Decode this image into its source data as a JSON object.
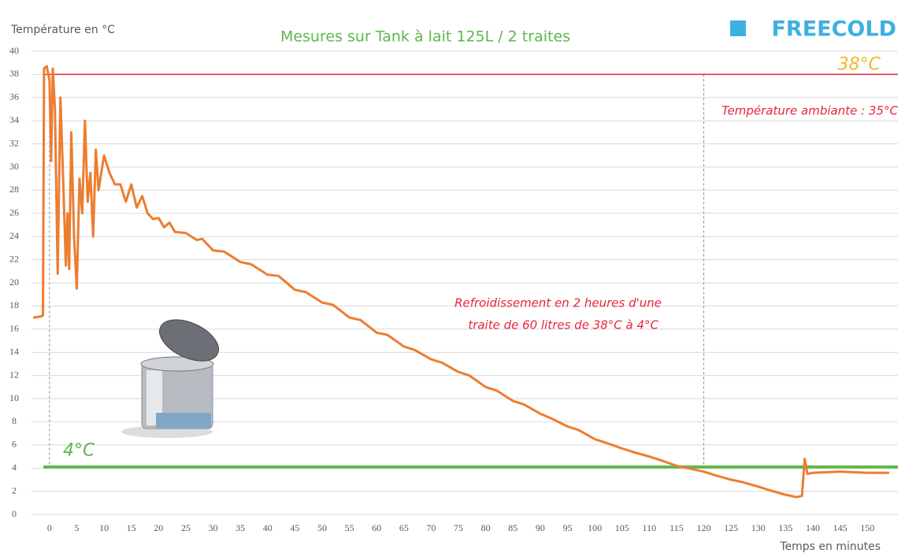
{
  "chart_data": {
    "type": "line",
    "title": "Mesures sur Tank à lait 125L / 2 traites",
    "brand": "FREECOLD",
    "y_label": "Température en °C",
    "x_label": "Temps en minutes",
    "xlim": [
      -3.3,
      155.6
    ],
    "ylim": [
      0,
      40
    ],
    "xticks": [
      0,
      5,
      10,
      15,
      20,
      25,
      30,
      35,
      40,
      45,
      50,
      55,
      60,
      65,
      70,
      75,
      80,
      85,
      90,
      95,
      100,
      105,
      110,
      115,
      120,
      125,
      130,
      135,
      140,
      145,
      150
    ],
    "yticks": [
      0,
      2,
      4,
      6,
      8,
      10,
      12,
      14,
      16,
      18,
      20,
      22,
      24,
      26,
      28,
      30,
      32,
      34,
      36,
      38,
      40
    ],
    "grid": true,
    "series": [
      {
        "color": "#ed7d31",
        "x": [
          -3,
          -1.5,
          -1.2,
          -1,
          -0.5,
          0,
          0.3,
          0.6,
          1,
          1.5,
          2,
          2.5,
          3,
          3.3,
          3.6,
          4,
          4.5,
          5,
          5.5,
          6,
          6.5,
          7,
          7.5,
          8,
          8.5,
          9,
          10,
          11,
          12,
          13,
          14,
          15,
          16,
          17,
          18,
          19,
          20,
          21,
          22,
          23,
          25,
          27,
          28,
          30,
          32,
          35,
          37,
          40,
          42,
          45,
          47,
          50,
          52,
          55,
          57,
          60,
          62,
          65,
          67,
          70,
          72,
          75,
          77,
          80,
          82,
          85,
          87,
          90,
          92,
          95,
          97,
          100,
          102,
          105,
          107,
          110,
          112,
          115,
          117,
          120,
          122,
          125,
          127,
          130,
          132,
          135,
          137,
          138,
          138.5,
          139,
          140,
          145,
          150,
          154
        ],
        "values": [
          17,
          17.1,
          17.2,
          38.5,
          38.7,
          37.5,
          30.5,
          38.5,
          35,
          20.8,
          36,
          29,
          21.5,
          26,
          21.2,
          33,
          24,
          19.5,
          29,
          26,
          34,
          27,
          29.5,
          24,
          31.5,
          28,
          31,
          29.5,
          28.5,
          28.5,
          27,
          28.5,
          26.5,
          27.5,
          26,
          25.5,
          25.6,
          24.8,
          25.2,
          24.4,
          24.3,
          23.7,
          23.8,
          22.8,
          22.7,
          21.8,
          21.6,
          20.7,
          20.6,
          19.4,
          19.2,
          18.3,
          18.1,
          17,
          16.8,
          15.7,
          15.5,
          14.5,
          14.2,
          13.4,
          13.1,
          12.3,
          12,
          11,
          10.7,
          9.8,
          9.5,
          8.7,
          8.3,
          7.6,
          7.3,
          6.5,
          6.2,
          5.7,
          5.4,
          5,
          4.7,
          4.2,
          4,
          3.7,
          3.4,
          3,
          2.8,
          2.4,
          2.1,
          1.7,
          1.5,
          1.6,
          4.8,
          3.5,
          3.6,
          3.7,
          3.6,
          3.6
        ]
      }
    ],
    "reference_lines": [
      {
        "value": 38,
        "color": "#e8243c",
        "width": 1.5,
        "label": "38°C",
        "label_color": "#f2b82a"
      },
      {
        "value": 4.1,
        "color": "#5cb84a",
        "width": 4,
        "label": "4°C",
        "label_color": "#5cb84a"
      }
    ],
    "vlines": [
      0,
      120
    ],
    "annotations": [
      "Température ambiante : 35°C",
      "Refroidissement en 2 heures d'une",
      "traite de 60 litres de 38°C à 4°C"
    ]
  }
}
